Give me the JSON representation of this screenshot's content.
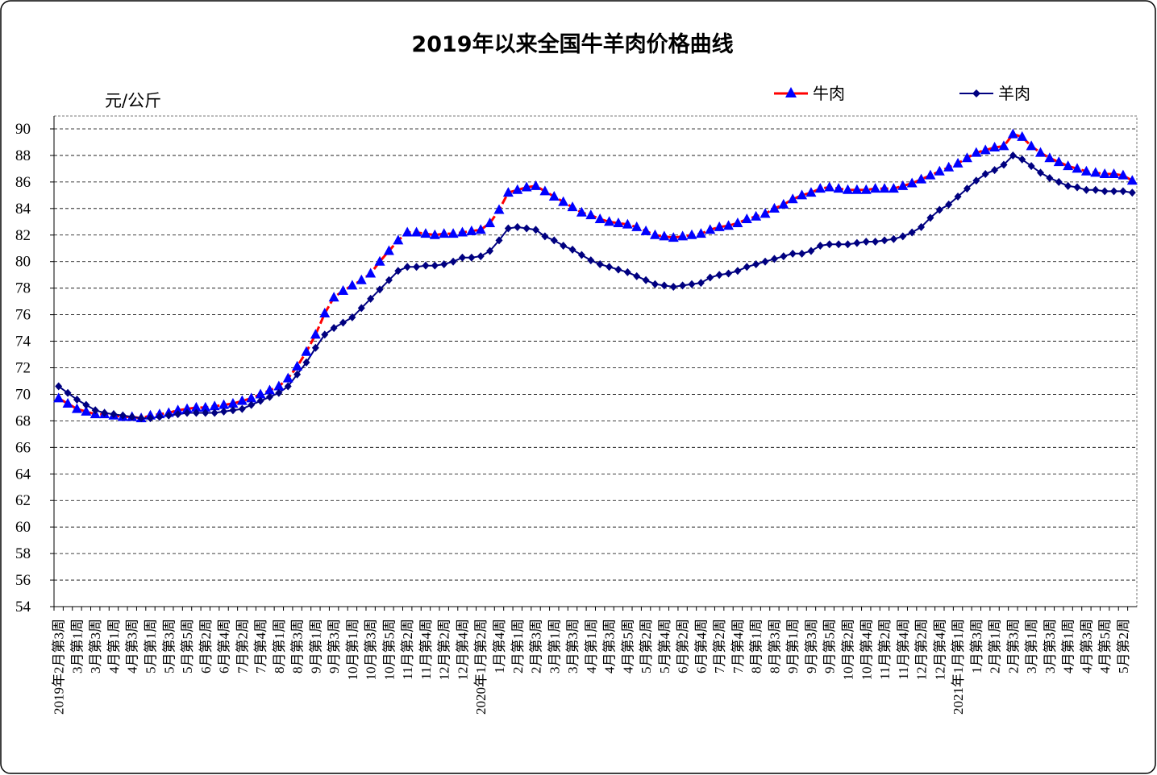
{
  "chart_data": {
    "type": "line",
    "title": "2019年以来全国牛羊肉价格曲线",
    "y_label": "元/公斤",
    "categories": [
      "2019年2月第3周",
      null,
      "3月第1周",
      null,
      "3月第3周",
      null,
      "4月第1周",
      null,
      "4月第3周",
      null,
      "5月第1周",
      null,
      "5月第3周",
      null,
      "5月第5周",
      null,
      "6月第2周",
      null,
      "6月第4周",
      null,
      "7月第2周",
      null,
      "7月第4周",
      null,
      "8月第1周",
      null,
      "8月第3周",
      null,
      "9月第1周",
      null,
      "9月第3周",
      null,
      "10月第1周",
      null,
      "10月第3周",
      null,
      "10月第5周",
      null,
      "11月第2周",
      null,
      "11月第4周",
      null,
      "12月第2周",
      null,
      "12月第4周",
      null,
      "2020年1月第2周",
      null,
      "1月第4周",
      null,
      "2月第1周",
      null,
      "2月第3周",
      null,
      "3月第1周",
      null,
      "3月第3周",
      null,
      "4月第1周",
      null,
      "4月第3周",
      null,
      "4月第5周",
      null,
      "5月第2周",
      null,
      "5月第4周",
      null,
      "6月第2周",
      null,
      "6月第4周",
      null,
      "7月第2周",
      null,
      "7月第4周",
      null,
      "8月第1周",
      null,
      "8月第3周",
      null,
      "9月第1周",
      null,
      "9月第3周",
      null,
      "9月第5周",
      null,
      "10月第2周",
      null,
      "10月第4周",
      null,
      "11月第2周",
      null,
      "11月第4周",
      null,
      "12月第2周",
      null,
      "12月第4周",
      null,
      "2021年1月第1周",
      null,
      "1月第3周",
      null,
      "2月第1周",
      null,
      "2月第3周",
      null,
      "3月第1周",
      null,
      "3月第3周",
      null,
      "4月第1周",
      null,
      "4月第3周",
      null,
      "4月第5周",
      null,
      "5月第2周",
      null
    ],
    "series": [
      {
        "name": "牛肉",
        "color": "#ff0000",
        "marker": "triangle",
        "marker_color": "#0000ff",
        "values": [
          69.7,
          69.3,
          68.9,
          68.7,
          68.5,
          68.5,
          68.4,
          68.3,
          68.3,
          68.2,
          68.4,
          68.5,
          68.6,
          68.8,
          68.9,
          69.0,
          69.0,
          69.1,
          69.2,
          69.3,
          69.5,
          69.7,
          70.0,
          70.3,
          70.6,
          71.2,
          72.1,
          73.2,
          74.5,
          76.1,
          77.3,
          77.8,
          78.2,
          78.6,
          79.1,
          80.0,
          80.8,
          81.6,
          82.2,
          82.2,
          82.1,
          82.0,
          82.1,
          82.1,
          82.2,
          82.3,
          82.4,
          82.9,
          83.9,
          85.2,
          85.4,
          85.6,
          85.7,
          85.3,
          84.9,
          84.5,
          84.1,
          83.7,
          83.5,
          83.2,
          83.0,
          82.9,
          82.8,
          82.6,
          82.3,
          82.0,
          81.9,
          81.8,
          81.9,
          82.0,
          82.1,
          82.4,
          82.6,
          82.7,
          82.9,
          83.2,
          83.4,
          83.6,
          84.0,
          84.3,
          84.7,
          85.0,
          85.2,
          85.5,
          85.6,
          85.5,
          85.4,
          85.4,
          85.4,
          85.5,
          85.5,
          85.5,
          85.7,
          85.9,
          86.2,
          86.5,
          86.8,
          87.1,
          87.4,
          87.8,
          88.2,
          88.4,
          88.6,
          88.7,
          89.6,
          89.4,
          88.7,
          88.2,
          87.8,
          87.5,
          87.2,
          87.0,
          86.8,
          86.7,
          86.6,
          86.6,
          86.5,
          86.1
        ]
      },
      {
        "name": "羊肉",
        "color": "#000080",
        "marker": "diamond",
        "marker_color": "#000080",
        "values": [
          70.6,
          70.1,
          69.6,
          69.2,
          68.8,
          68.6,
          68.5,
          68.4,
          68.3,
          68.2,
          68.2,
          68.3,
          68.4,
          68.5,
          68.6,
          68.6,
          68.6,
          68.6,
          68.7,
          68.8,
          68.9,
          69.2,
          69.5,
          69.8,
          70.1,
          70.6,
          71.5,
          72.4,
          73.5,
          74.5,
          75.0,
          75.4,
          75.8,
          76.5,
          77.2,
          77.9,
          78.6,
          79.3,
          79.6,
          79.6,
          79.7,
          79.7,
          79.8,
          80.0,
          80.3,
          80.3,
          80.4,
          80.8,
          81.6,
          82.5,
          82.6,
          82.5,
          82.4,
          81.9,
          81.6,
          81.2,
          80.9,
          80.5,
          80.1,
          79.8,
          79.6,
          79.4,
          79.2,
          78.9,
          78.6,
          78.3,
          78.2,
          78.1,
          78.2,
          78.3,
          78.4,
          78.8,
          79.0,
          79.1,
          79.3,
          79.6,
          79.8,
          80.0,
          80.2,
          80.4,
          80.6,
          80.6,
          80.8,
          81.2,
          81.3,
          81.3,
          81.3,
          81.4,
          81.5,
          81.5,
          81.6,
          81.7,
          81.9,
          82.2,
          82.6,
          83.3,
          83.9,
          84.3,
          84.9,
          85.5,
          86.1,
          86.6,
          86.9,
          87.3,
          88.0,
          87.7,
          87.2,
          86.7,
          86.3,
          86.0,
          85.7,
          85.6,
          85.4,
          85.4,
          85.3,
          85.3,
          85.3,
          85.2
        ]
      }
    ],
    "ylim": [
      54,
      90
    ],
    "yticks": [
      54,
      56,
      58,
      60,
      62,
      64,
      66,
      68,
      70,
      72,
      74,
      76,
      78,
      80,
      82,
      84,
      86,
      88,
      90
    ],
    "grid": true,
    "legend": "top-right"
  }
}
